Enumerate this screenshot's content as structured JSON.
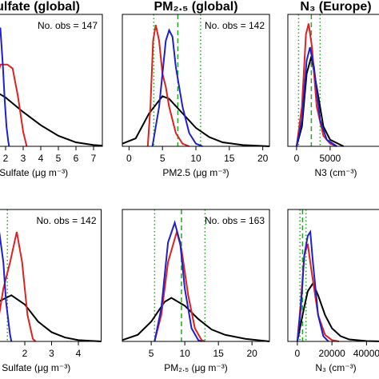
{
  "chart_data": [
    {
      "type": "line",
      "title": "Sulfate (global)",
      "xlabel": "Sulfate (μg m⁻³)",
      "annotation": "No. obs = 147",
      "xlim": [
        -0.3,
        7.5
      ],
      "ylim": [
        0,
        1
      ],
      "xticks": [
        2,
        3,
        4,
        5,
        6,
        7
      ],
      "vlines": [],
      "vline_styles": [],
      "vline_color": "#22aa22",
      "series": [
        {
          "color": "#000000",
          "x": [
            -0.3,
            1,
            2,
            3,
            4,
            5,
            6,
            7,
            7.5
          ],
          "values": [
            0.3,
            0.45,
            0.37,
            0.26,
            0.16,
            0.08,
            0.03,
            0.01,
            0.005
          ]
        },
        {
          "color": "#dd2222",
          "x": [
            1.2,
            1.5,
            1.7,
            2.1,
            2.4,
            2.7,
            3,
            3.2
          ],
          "values": [
            0.3,
            0.5,
            0.62,
            0.62,
            0.59,
            0.38,
            0.11,
            0
          ]
        },
        {
          "color": "#1f1fd0",
          "x": [
            1.7,
            1.85,
            1.95,
            2.05,
            2.15,
            2.2
          ],
          "values": [
            0.9,
            0.6,
            0.35,
            0.15,
            0.04,
            0
          ]
        }
      ]
    },
    {
      "type": "line",
      "title": "PM₂.₅ (global)",
      "xlabel": "PM2.5 (μg m⁻³)",
      "annotation": "No. obs = 142",
      "xlim": [
        -1,
        21
      ],
      "ylim": [
        0,
        1
      ],
      "xticks": [
        0,
        5,
        10,
        15,
        20
      ],
      "vlines": [
        7.3,
        3.7,
        10.7
      ],
      "vline_styles": [
        "dashed",
        "dotted",
        "dotted"
      ],
      "vline_color": "#22aa22",
      "series": [
        {
          "color": "#000000",
          "x": [
            -1,
            1,
            3,
            5,
            6,
            8,
            10,
            12,
            14,
            17,
            21
          ],
          "values": [
            0.02,
            0.06,
            0.25,
            0.38,
            0.36,
            0.25,
            0.14,
            0.07,
            0.03,
            0.01,
            0
          ]
        },
        {
          "color": "#dd2222",
          "x": [
            2.8,
            3.2,
            3.6,
            4,
            4.5,
            5,
            5.5,
            6,
            7,
            8,
            9
          ],
          "values": [
            0,
            0.3,
            0.8,
            0.92,
            0.8,
            0.55,
            0.45,
            0.3,
            0.1,
            0.02,
            0
          ]
        },
        {
          "color": "#1f1fd0",
          "x": [
            3.5,
            4.5,
            5.5,
            6,
            6.5,
            7,
            8,
            9,
            10,
            11
          ],
          "values": [
            0,
            0.3,
            0.8,
            0.88,
            0.83,
            0.6,
            0.3,
            0.1,
            0.02,
            0
          ]
        }
      ]
    },
    {
      "type": "line",
      "title": "N₃ (Europe)",
      "xlabel": "N3 (cm⁻³)",
      "xlim": [
        -1300,
        13000
      ],
      "ylim": [
        0,
        1
      ],
      "xticks": [
        0,
        5000
      ],
      "vlines": [
        2200,
        300,
        3500
      ],
      "vline_styles": [
        "dashed",
        "dotted",
        "dotted"
      ],
      "vline_color": "#22aa22",
      "series": [
        {
          "color": "#000000",
          "x": [
            0,
            800,
            1500,
            2200,
            3000,
            4000,
            5000,
            7000
          ],
          "values": [
            0,
            0.15,
            0.55,
            0.68,
            0.45,
            0.15,
            0.05,
            0
          ]
        },
        {
          "color": "#dd2222",
          "x": [
            0,
            800,
            1400,
            1800,
            2300,
            3000,
            4000,
            5000,
            6000
          ],
          "values": [
            0,
            0.3,
            0.85,
            0.93,
            0.75,
            0.3,
            0.08,
            0.02,
            0
          ]
        },
        {
          "color": "#1f1fd0",
          "x": [
            0,
            800,
            1500,
            2000,
            2600,
            3500,
            4500,
            6000
          ],
          "values": [
            0,
            0.2,
            0.65,
            0.75,
            0.6,
            0.2,
            0.05,
            0
          ]
        }
      ]
    },
    {
      "type": "line",
      "xlabel": "Sulfate (μg m⁻³)",
      "annotation": "No. obs = 142",
      "xlim": [
        0,
        4.85
      ],
      "ylim": [
        0,
        1
      ],
      "xticks": [
        2,
        3,
        4
      ],
      "vlines": [
        1.35
      ],
      "vline_styles": [
        "dotted"
      ],
      "vline_color": "#22aa22",
      "series": [
        {
          "color": "#000000",
          "x": [
            0.5,
            1,
            1.5,
            2,
            2.5,
            3,
            3.5,
            4,
            4.85
          ],
          "values": [
            0.15,
            0.3,
            0.35,
            0.28,
            0.15,
            0.07,
            0.03,
            0.01,
            0
          ]
        },
        {
          "color": "#dd2222",
          "x": [
            1,
            1.2,
            1.45,
            1.7,
            1.9,
            2.1,
            2.3,
            2.4
          ],
          "values": [
            0.15,
            0.4,
            0.6,
            0.83,
            0.6,
            0.2,
            0.02,
            0
          ]
        },
        {
          "color": "#1f1fd0",
          "x": [
            0.8,
            1,
            1.2,
            1.3,
            1.45,
            1.5
          ],
          "values": [
            0.95,
            0.9,
            0.6,
            0.3,
            0.05,
            0
          ]
        }
      ]
    },
    {
      "type": "line",
      "xlabel": "PM₂.₅ (μg m⁻³)",
      "annotation": "No. obs = 163",
      "xlim": [
        0.7,
        22.6
      ],
      "ylim": [
        0,
        1
      ],
      "xticks": [
        5,
        10,
        15,
        20
      ],
      "vlines": [
        9.5,
        5.5,
        13
      ],
      "vline_styles": [
        "dashed",
        "dotted",
        "dotted"
      ],
      "vline_color": "#22aa22",
      "series": [
        {
          "color": "#000000",
          "x": [
            0.7,
            3,
            5,
            7,
            8,
            10,
            12,
            14,
            16,
            19,
            22.6
          ],
          "values": [
            0.01,
            0.05,
            0.15,
            0.3,
            0.33,
            0.27,
            0.17,
            0.09,
            0.05,
            0.02,
            0
          ]
        },
        {
          "color": "#dd2222",
          "x": [
            5.5,
            6.5,
            7.5,
            8.8,
            9.5,
            10.5,
            11.5,
            12.5,
            13
          ],
          "values": [
            0,
            0.2,
            0.6,
            0.83,
            0.7,
            0.35,
            0.1,
            0.01,
            0
          ]
        },
        {
          "color": "#1f1fd0",
          "x": [
            5.5,
            6.5,
            7.5,
            8.5,
            9.3,
            10,
            11,
            12,
            12.5
          ],
          "values": [
            0,
            0.25,
            0.75,
            0.9,
            0.75,
            0.4,
            0.1,
            0.01,
            0
          ]
        }
      ]
    },
    {
      "type": "line",
      "xlabel": "N₃ (cm⁻³)",
      "xlim": [
        -5500,
        50000
      ],
      "ylim": [
        0,
        1
      ],
      "xticks": [
        0,
        20000,
        40000
      ],
      "vlines": [
        3000,
        1500,
        5000
      ],
      "vline_styles": [
        "dashed",
        "dotted",
        "dotted"
      ],
      "vline_color": "#22aa22",
      "series": [
        {
          "color": "#000000",
          "x": [
            0,
            3000,
            6000,
            9000,
            12000,
            16000,
            20000,
            25000,
            30000,
            40000,
            50000
          ],
          "values": [
            0,
            0.2,
            0.38,
            0.44,
            0.35,
            0.2,
            0.1,
            0.04,
            0.015,
            0.003,
            0
          ]
        },
        {
          "color": "#dd2222",
          "x": [
            0,
            2000,
            4000,
            6000,
            8000,
            12000,
            16000,
            20000,
            24000
          ],
          "values": [
            0,
            0.3,
            0.65,
            0.74,
            0.55,
            0.2,
            0.05,
            0.01,
            0
          ]
        },
        {
          "color": "#1f1fd0",
          "x": [
            0,
            2000,
            4000,
            6000,
            7500,
            9000,
            12000,
            15000,
            18000
          ],
          "values": [
            0,
            0.25,
            0.65,
            0.8,
            0.83,
            0.6,
            0.2,
            0.04,
            0
          ]
        }
      ]
    }
  ]
}
